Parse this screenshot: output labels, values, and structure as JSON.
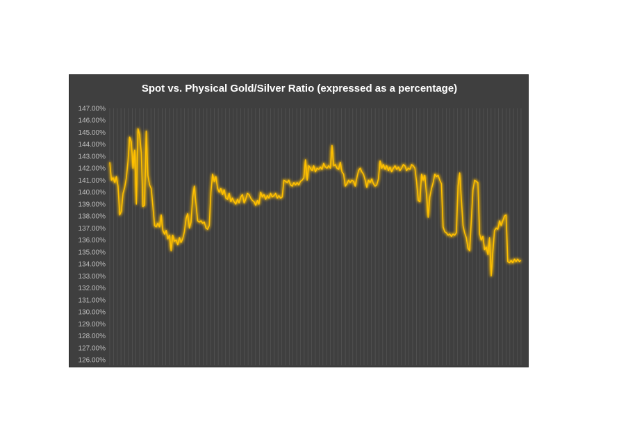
{
  "chart_data": {
    "type": "line",
    "title": "Spot vs. Physical Gold/Silver Ratio (expressed as a percentage)",
    "xlabel": "",
    "ylabel": "",
    "ylim": [
      126,
      147
    ],
    "y_ticks": [
      "147.00%",
      "146.00%",
      "145.00%",
      "144.00%",
      "143.00%",
      "142.00%",
      "141.00%",
      "140.00%",
      "139.00%",
      "138.00%",
      "137.00%",
      "136.00%",
      "135.00%",
      "134.00%",
      "133.00%",
      "132.00%",
      "131.00%",
      "130.00%",
      "129.00%",
      "128.00%",
      "127.00%",
      "126.00%"
    ],
    "grid": "vertical",
    "legend": "none",
    "colors": {
      "background": "#3f3f3f",
      "line": "#ffc000",
      "glow": "#ffd700",
      "grid": "#5a5a5a",
      "title": "#ffffff",
      "tick_label": "#bfbfbf"
    },
    "series": [
      {
        "values": [
          142.5,
          141.0,
          141.2,
          140.8,
          141.3,
          140.5,
          138.1,
          138.4,
          139.9,
          140.4,
          141.2,
          142.6,
          144.6,
          144.2,
          142.0,
          143.5,
          139.0,
          145.3,
          144.8,
          143.3,
          138.8,
          138.9,
          145.1,
          141.4,
          140.6,
          140.3,
          138.8,
          137.2,
          137.1,
          137.4,
          137.1,
          138.1,
          136.8,
          136.5,
          136.8,
          136.1,
          136.4,
          135.1,
          136.4,
          135.9,
          136.0,
          135.6,
          136.2,
          135.8,
          136.1,
          136.7,
          137.8,
          138.2,
          137.0,
          137.5,
          139.6,
          140.5,
          139.0,
          137.6,
          137.5,
          137.6,
          137.4,
          137.5,
          137.0,
          136.9,
          137.2,
          140.0,
          141.5,
          140.9,
          141.3,
          140.3,
          140.0,
          140.3,
          139.8,
          140.2,
          139.5,
          139.4,
          139.9,
          139.2,
          139.5,
          139.2,
          139.0,
          139.4,
          139.1,
          139.6,
          139.8,
          139.1,
          139.4,
          139.9,
          139.8,
          139.5,
          139.3,
          139.2,
          138.9,
          139.3,
          139.0,
          140.0,
          139.6,
          139.8,
          139.4,
          139.7,
          139.5,
          139.9,
          139.6,
          139.7,
          139.9,
          139.5,
          139.7,
          139.5,
          139.6,
          141.0,
          140.9,
          140.8,
          141.0,
          140.6,
          140.5,
          140.8,
          140.6,
          140.8,
          140.6,
          140.9,
          141.0,
          141.2,
          142.7,
          141.0,
          142.2,
          142.0,
          141.8,
          142.2,
          141.7,
          142.0,
          141.9,
          142.1,
          141.9,
          142.4,
          142.1,
          142.0,
          142.2,
          142.0,
          143.9,
          142.2,
          142.3,
          142.0,
          141.9,
          142.5,
          141.7,
          141.5,
          140.5,
          140.7,
          141.0,
          140.8,
          141.0,
          140.9,
          140.5,
          141.2,
          141.8,
          142.0,
          141.7,
          141.5,
          141.0,
          140.4,
          141.0,
          140.8,
          141.1,
          140.7,
          140.5,
          140.6,
          141.1,
          142.6,
          142.0,
          142.3,
          141.9,
          142.2,
          141.8,
          142.1,
          141.7,
          142.0,
          142.2,
          141.9,
          142.1,
          141.8,
          142.0,
          142.3,
          142.2,
          141.8,
          142.0,
          141.9,
          142.3,
          142.2,
          142.0,
          140.9,
          139.3,
          139.2,
          141.5,
          141.0,
          141.4,
          139.8,
          137.9,
          139.6,
          140.3,
          140.8,
          141.5,
          141.3,
          141.4,
          141.0,
          140.7,
          137.1,
          136.7,
          136.6,
          136.4,
          136.5,
          136.3,
          136.5,
          136.4,
          136.6,
          140.5,
          141.6,
          139.4,
          137.2,
          136.6,
          136.2,
          135.3,
          135.1,
          137.6,
          140.2,
          141.0,
          140.9,
          140.8,
          136.5,
          136.0,
          136.3,
          135.2,
          135.4,
          134.8,
          136.2,
          133.0,
          135.0,
          136.8,
          137.0,
          136.9,
          137.6,
          137.2,
          137.6,
          138.0,
          138.1,
          134.2,
          134.1,
          134.3,
          134.1,
          134.4,
          134.2,
          134.4,
          134.2,
          134.3
        ]
      }
    ]
  }
}
